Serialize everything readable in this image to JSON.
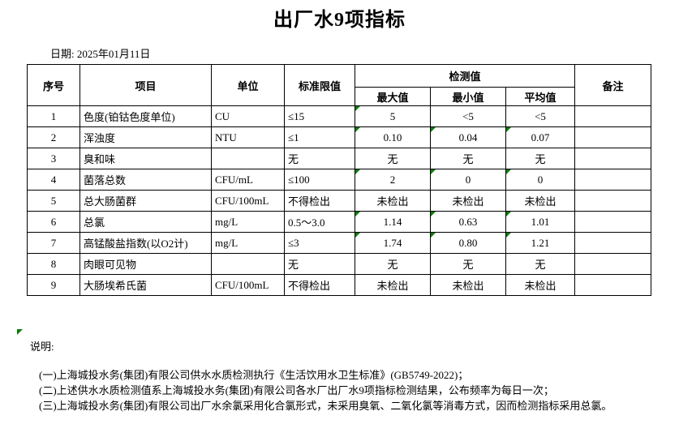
{
  "title": "出厂水9项指标",
  "date": {
    "label": "日期: 2025年01月11日"
  },
  "table": {
    "headers": {
      "no": "序号",
      "item": "项目",
      "unit": "单位",
      "limit": "标准限值",
      "detection": "检测值",
      "max": "最大值",
      "min": "最小值",
      "avg": "平均值",
      "remark": "备注"
    },
    "rows": [
      {
        "no": "1",
        "item": "色度(铂钴色度单位)",
        "unit": "CU",
        "limit": "≤15",
        "max": "5",
        "min": "<5",
        "avg": "<5",
        "remark": "",
        "markers": [
          "max"
        ]
      },
      {
        "no": "2",
        "item": "浑浊度",
        "unit": "NTU",
        "limit": "≤1",
        "max": "0.10",
        "min": "0.04",
        "avg": "0.07",
        "remark": "",
        "markers": [
          "max",
          "min",
          "avg"
        ]
      },
      {
        "no": "3",
        "item": "臭和味",
        "unit": "",
        "limit": "无",
        "max": "无",
        "min": "无",
        "avg": "无",
        "remark": "",
        "markers": []
      },
      {
        "no": "4",
        "item": "菌落总数",
        "unit": "CFU/mL",
        "limit": "≤100",
        "max": "2",
        "min": "0",
        "avg": "0",
        "remark": "",
        "markers": [
          "max",
          "min",
          "avg"
        ]
      },
      {
        "no": "5",
        "item": "总大肠菌群",
        "unit": "CFU/100mL",
        "limit": "不得检出",
        "max": "未检出",
        "min": "未检出",
        "avg": "未检出",
        "remark": "",
        "markers": []
      },
      {
        "no": "6",
        "item": "总氯",
        "unit": "mg/L",
        "limit": "0.5～3.0",
        "max": "1.14",
        "min": "0.63",
        "avg": "1.01",
        "remark": "",
        "markers": [
          "max",
          "min",
          "avg"
        ]
      },
      {
        "no": "7",
        "item": "高锰酸盐指数(以O2计)",
        "unit": "mg/L",
        "limit": "≤3",
        "max": "1.74",
        "min": "0.80",
        "avg": "1.21",
        "remark": "",
        "markers": [
          "max",
          "min",
          "avg"
        ]
      },
      {
        "no": "8",
        "item": "肉眼可见物",
        "unit": "",
        "limit": "无",
        "max": "无",
        "min": "无",
        "avg": "无",
        "remark": "",
        "markers": []
      },
      {
        "no": "9",
        "item": "大肠埃希氏菌",
        "unit": "CFU/100mL",
        "limit": "不得检出",
        "max": "未检出",
        "min": "未检出",
        "avg": "未检出",
        "remark": "",
        "markers": []
      }
    ]
  },
  "notes": {
    "label": "说明:",
    "items": [
      "(一)上海城投水务(集团)有限公司供水水质检测执行《生活饮用水卫生标准》(GB5749-2022)；",
      "(二)上述供水水质检测值系上海城投水务(集团)有限公司各水厂出厂水9项指标检测结果，公布频率为每日一次；",
      "(三)上海城投水务(集团)有限公司出厂水余氯采用化合氯形式，未采用臭氧、二氧化氯等消毒方式，因而检测指标采用总氯。"
    ]
  },
  "colors": {
    "indicator_green": "#0a7d0a",
    "text": "#000000",
    "background": "#ffffff"
  }
}
